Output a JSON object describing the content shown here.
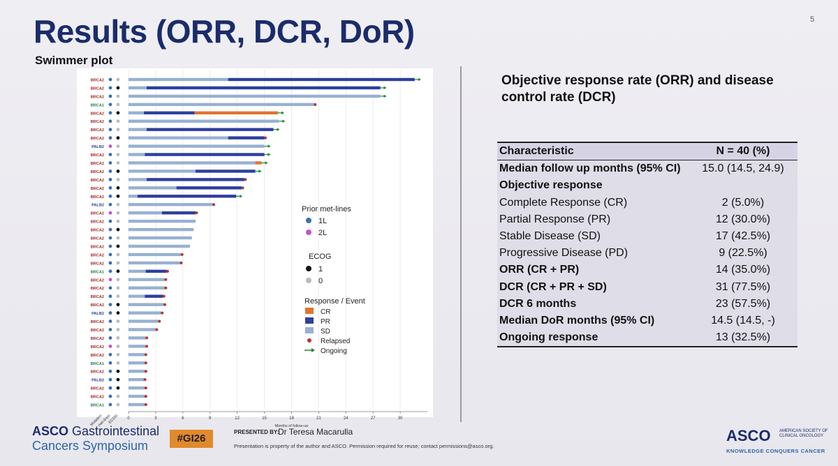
{
  "title": "Results (ORR, DCR, DoR)",
  "page_number": "5",
  "chart_data": {
    "type": "swimmer",
    "title": "Swimmer plot",
    "xlabel": "Months of follow-up",
    "xlim": [
      0,
      33
    ],
    "xticks": [
      0,
      3,
      6,
      9,
      12,
      15,
      18,
      21,
      24,
      27,
      30
    ],
    "col_labels": [
      "Mutation",
      "Prior met-lines",
      "ECOG"
    ],
    "colors": {
      "CR": "#e0742e",
      "PR": "#2e3f9e",
      "SD": "#97b1d3",
      "Relapsed": "#b8342c",
      "Ongoing": "#1f8a2e",
      "line1L": "#3a6fb5",
      "line2L": "#c652cf",
      "ecog1": "#111111",
      "ecog0": "#bbbbbb"
    },
    "legend": {
      "prior_title": "Prior met-lines",
      "prior": [
        {
          "label": "1L",
          "key": "line1L"
        },
        {
          "label": "2L",
          "key": "line2L"
        }
      ],
      "ecog_title": "ECOG",
      "ecog": [
        {
          "label": "1",
          "key": "ecog1"
        },
        {
          "label": "0",
          "key": "ecog0"
        }
      ],
      "resp_title": "Response / Event",
      "resp": [
        {
          "label": "CR",
          "key": "CR"
        },
        {
          "label": "PR",
          "key": "PR"
        },
        {
          "label": "SD",
          "key": "SD"
        },
        {
          "label": "Relapsed",
          "key": "Relapsed"
        },
        {
          "label": "Ongoing",
          "key": "Ongoing"
        }
      ]
    },
    "patients": [
      {
        "mut": "BRCA2",
        "line": 1,
        "ecog": 0,
        "segs": [
          [
            "SD",
            0,
            11
          ],
          [
            "PR",
            11,
            31.6
          ]
        ],
        "end": "ongoing"
      },
      {
        "mut": "BRCA2",
        "line": 1,
        "ecog": 1,
        "segs": [
          [
            "SD",
            0,
            2
          ],
          [
            "PR",
            2,
            27.8
          ]
        ],
        "end": "ongoing"
      },
      {
        "mut": "BRCA2",
        "line": 1,
        "ecog": 0,
        "segs": [
          [
            "SD",
            0,
            27.8
          ]
        ],
        "end": "ongoing"
      },
      {
        "mut": "BRCA1",
        "line": 1,
        "ecog": 0,
        "segs": [
          [
            "SD",
            0,
            20.5
          ]
        ],
        "end": "relapsed"
      },
      {
        "mut": "BRCA2",
        "line": 1,
        "ecog": 1,
        "segs": [
          [
            "SD",
            0,
            1.7
          ],
          [
            "PR",
            1.7,
            7.3
          ],
          [
            "CR",
            7.3,
            16.5
          ]
        ],
        "end": "ongoing"
      },
      {
        "mut": "BRCA2",
        "line": 1,
        "ecog": 0,
        "segs": [
          [
            "SD",
            0,
            16.6
          ]
        ],
        "end": "ongoing"
      },
      {
        "mut": "BRCA2",
        "line": 1,
        "ecog": 0,
        "segs": [
          [
            "SD",
            0,
            2
          ],
          [
            "PR",
            2,
            16
          ]
        ],
        "end": "ongoing"
      },
      {
        "mut": "BRCA2",
        "line": 1,
        "ecog": 1,
        "segs": [
          [
            "SD",
            0,
            11
          ],
          [
            "PR",
            11,
            15
          ]
        ],
        "end": "relapsed"
      },
      {
        "mut": "PALB2",
        "line": 2,
        "ecog": 0,
        "segs": [
          [
            "SD",
            0,
            15
          ]
        ],
        "end": "ongoing"
      },
      {
        "mut": "BRCA2",
        "line": 1,
        "ecog": 0,
        "segs": [
          [
            "SD",
            0,
            1.8
          ],
          [
            "PR",
            1.8,
            15
          ]
        ],
        "end": "ongoing"
      },
      {
        "mut": "BRCA2",
        "line": 1,
        "ecog": 0,
        "segs": [
          [
            "SD",
            0,
            14
          ],
          [
            "CR",
            14,
            14.7
          ]
        ],
        "end": "ongoing"
      },
      {
        "mut": "BRCA2",
        "line": 1,
        "ecog": 1,
        "segs": [
          [
            "SD",
            0,
            7.4
          ],
          [
            "PR",
            7.4,
            14
          ]
        ],
        "end": "ongoing"
      },
      {
        "mut": "BRCA2",
        "line": 1,
        "ecog": 0,
        "segs": [
          [
            "SD",
            0,
            2
          ],
          [
            "PR",
            2,
            12.8
          ]
        ],
        "end": "relapsed"
      },
      {
        "mut": "BRCA2",
        "line": 1,
        "ecog": 1,
        "segs": [
          [
            "SD",
            0,
            5.3
          ],
          [
            "PR",
            5.3,
            12.5
          ]
        ],
        "end": "relapsed"
      },
      {
        "mut": "BRCA2",
        "line": 1,
        "ecog": 1,
        "segs": [
          [
            "SD",
            0,
            1
          ],
          [
            "PR",
            1,
            11.9
          ]
        ],
        "end": "ongoing"
      },
      {
        "mut": "PALB2",
        "line": 1,
        "ecog": 0,
        "segs": [
          [
            "SD",
            0,
            9.3
          ]
        ],
        "end": "relapsed"
      },
      {
        "mut": "BRCA2",
        "line": 2,
        "ecog": 0,
        "segs": [
          [
            "SD",
            0,
            3.7
          ],
          [
            "PR",
            3.7,
            7.4
          ]
        ],
        "end": "relapsed"
      },
      {
        "mut": "BRCA2",
        "line": 1,
        "ecog": 0,
        "segs": [
          [
            "SD",
            0,
            7.4
          ]
        ],
        "end": "none"
      },
      {
        "mut": "BRCA2",
        "line": 1,
        "ecog": 1,
        "segs": [
          [
            "SD",
            0,
            7.2
          ]
        ],
        "end": "none"
      },
      {
        "mut": "BRCA2",
        "line": 1,
        "ecog": 0,
        "segs": [
          [
            "SD",
            0,
            7
          ]
        ],
        "end": "none"
      },
      {
        "mut": "BRCA2",
        "line": 1,
        "ecog": 1,
        "segs": [
          [
            "SD",
            0,
            6.8
          ]
        ],
        "end": "none"
      },
      {
        "mut": "BRCA2",
        "line": 1,
        "ecog": 0,
        "segs": [
          [
            "SD",
            0,
            5.8
          ]
        ],
        "end": "relapsed"
      },
      {
        "mut": "BRCA2",
        "line": 1,
        "ecog": 0,
        "segs": [
          [
            "SD",
            0,
            5.7
          ]
        ],
        "end": "relapsed"
      },
      {
        "mut": "BRCA1",
        "line": 1,
        "ecog": 1,
        "segs": [
          [
            "SD",
            0,
            1.9
          ],
          [
            "PR",
            1.9,
            4.2
          ]
        ],
        "end": "relapsed"
      },
      {
        "mut": "BRCA2",
        "line": 2,
        "ecog": 0,
        "segs": [
          [
            "SD",
            0,
            4
          ]
        ],
        "end": "relapsed"
      },
      {
        "mut": "BRCA2",
        "line": 1,
        "ecog": 0,
        "segs": [
          [
            "SD",
            0,
            4
          ]
        ],
        "end": "relapsed"
      },
      {
        "mut": "BRCA2",
        "line": 1,
        "ecog": 0,
        "segs": [
          [
            "SD",
            0,
            1.8
          ],
          [
            "PR",
            1.8,
            3.8
          ]
        ],
        "end": "relapsed"
      },
      {
        "mut": "BRCA2",
        "line": 1,
        "ecog": 1,
        "segs": [
          [
            "SD",
            0,
            3.9
          ]
        ],
        "end": "relapsed"
      },
      {
        "mut": "PALB2",
        "line": 1,
        "ecog": 1,
        "segs": [
          [
            "SD",
            0,
            3.6
          ]
        ],
        "end": "relapsed"
      },
      {
        "mut": "BRCA2",
        "line": 1,
        "ecog": 0,
        "segs": [
          [
            "SD",
            0,
            3.3
          ]
        ],
        "end": "relapsed"
      },
      {
        "mut": "BRCA2",
        "line": 1,
        "ecog": 0,
        "segs": [
          [
            "SD",
            0,
            3
          ]
        ],
        "end": "relapsed"
      },
      {
        "mut": "BRCA2",
        "line": 1,
        "ecog": 0,
        "segs": [
          [
            "SD",
            0,
            1.9
          ]
        ],
        "end": "relapsed"
      },
      {
        "mut": "BRCA2",
        "line": 2,
        "ecog": 0,
        "segs": [
          [
            "SD",
            0,
            1.9
          ]
        ],
        "end": "relapsed"
      },
      {
        "mut": "BRCA2",
        "line": 1,
        "ecog": 0,
        "segs": [
          [
            "SD",
            0,
            1.8
          ]
        ],
        "end": "relapsed"
      },
      {
        "mut": "BRCA1",
        "line": 1,
        "ecog": 0,
        "segs": [
          [
            "SD",
            0,
            1.8
          ]
        ],
        "end": "relapsed"
      },
      {
        "mut": "BRCA2",
        "line": 1,
        "ecog": 1,
        "segs": [
          [
            "SD",
            0,
            1.8
          ]
        ],
        "end": "relapsed"
      },
      {
        "mut": "PALB2",
        "line": 1,
        "ecog": 1,
        "segs": [
          [
            "SD",
            0,
            1.7
          ]
        ],
        "end": "relapsed"
      },
      {
        "mut": "BRCA2",
        "line": 1,
        "ecog": 1,
        "segs": [
          [
            "SD",
            0,
            1.8
          ]
        ],
        "end": "relapsed"
      },
      {
        "mut": "BRCA2",
        "line": 1,
        "ecog": 0,
        "segs": [
          [
            "SD",
            0,
            1.8
          ]
        ],
        "end": "relapsed"
      },
      {
        "mut": "BRCA1",
        "line": 1,
        "ecog": 0,
        "segs": [
          [
            "SD",
            0,
            1.8
          ]
        ],
        "end": "relapsed"
      }
    ]
  },
  "table": {
    "heading": "Objective response rate (ORR) and disease control rate (DCR)",
    "header": [
      "Characteristic",
      "N = 40 (%)"
    ],
    "rows": [
      {
        "label": "Median follow up months (95% CI)",
        "value": "15.0 (14.5, 24.9)",
        "bold": true
      },
      {
        "label": "Objective response",
        "value": "",
        "bold": true
      },
      {
        "label": "Complete Response (CR)",
        "value": "2 (5.0%)",
        "bold": false
      },
      {
        "label": "Partial Response (PR)",
        "value": "12 (30.0%)",
        "bold": false
      },
      {
        "label": "Stable Disease (SD)",
        "value": "17 (42.5%)",
        "bold": false
      },
      {
        "label": "Progressive Disease (PD)",
        "value": "9 (22.5%)",
        "bold": false
      },
      {
        "label": "ORR (CR + PR)",
        "value": "14 (35.0%)",
        "bold": true
      },
      {
        "label": "DCR (CR + PR + SD)",
        "value": "31 (77.5%)",
        "bold": true
      },
      {
        "label": "DCR 6 months",
        "value": "23 (57.5%)",
        "bold": true
      },
      {
        "label": "Median DoR months (95% CI)",
        "value": "14.5 (14.5, -)",
        "bold": true
      },
      {
        "label": "Ongoing response",
        "value": "13 (32.5%)",
        "bold": true
      }
    ]
  },
  "footer": {
    "asco_word": "ASCO",
    "gi_line1": "Gastrointestinal",
    "gi_line2": "Cancers Symposium",
    "hashtag": "#GI26",
    "presented_by": "PRESENTED BY:",
    "presenter": "Dr Teresa Macarulla",
    "disclaimer": "Presentation is property of the author and ASCO. Permission required for reuse; contact permissions@asco.org.",
    "asco_logo": "ASCO",
    "asco_sub": "AMERICAN SOCIETY OF CLINICAL ONCOLOGY",
    "asco_tag": "KNOWLEDGE CONQUERS CANCER"
  }
}
